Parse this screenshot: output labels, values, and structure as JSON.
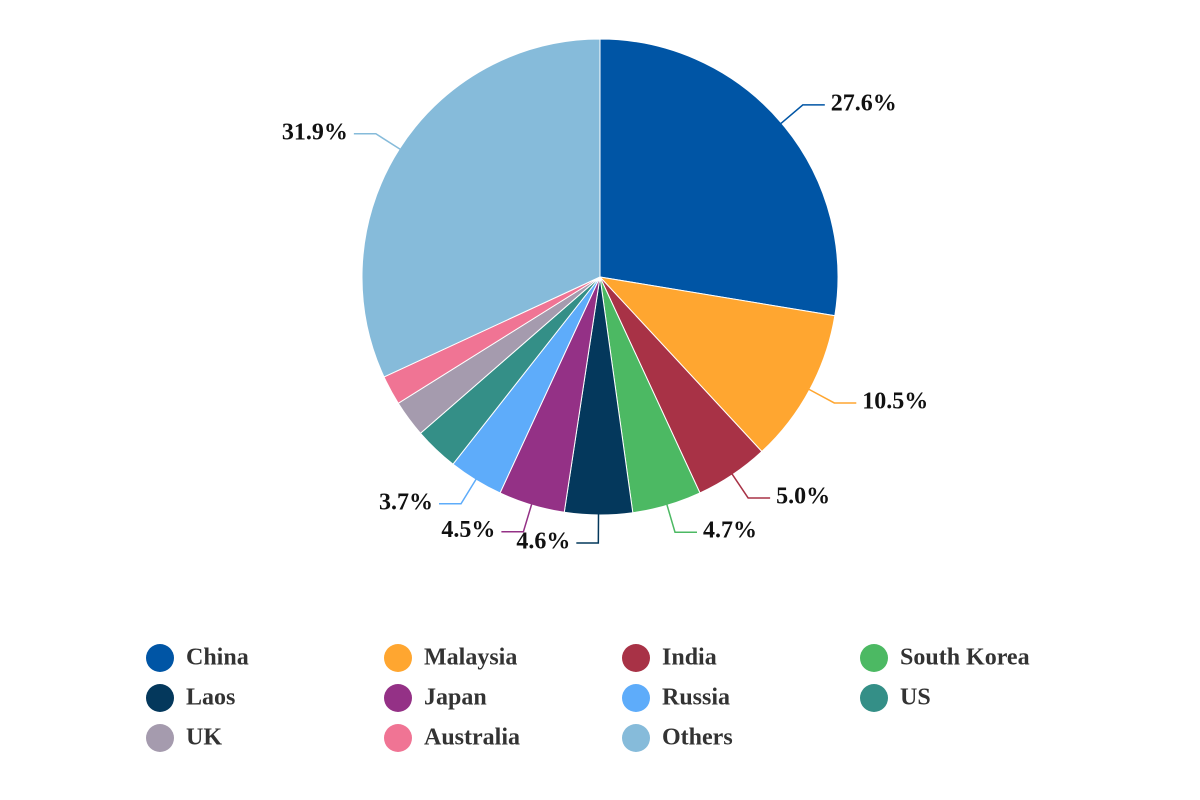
{
  "chart_data": {
    "type": "pie",
    "categories": [
      "China",
      "Malaysia",
      "India",
      "South Korea",
      "Laos",
      "Japan",
      "Russia",
      "US",
      "UK",
      "Australia",
      "Others"
    ],
    "values": [
      27.6,
      10.5,
      5.0,
      4.7,
      4.6,
      4.5,
      3.7,
      3.0,
      2.5,
      2.0,
      31.9
    ],
    "value_labels": [
      "27.6%",
      "10.5%",
      "5.0%",
      "4.7%",
      "4.6%",
      "4.5%",
      "3.7%",
      null,
      null,
      null,
      "31.9%"
    ],
    "colors": [
      "#0055a5",
      "#ffa630",
      "#a83246",
      "#4cb963",
      "#04385c",
      "#943186",
      "#5eacfa",
      "#348f87",
      "#a59bae",
      "#f07494",
      "#86bbda"
    ]
  }
}
